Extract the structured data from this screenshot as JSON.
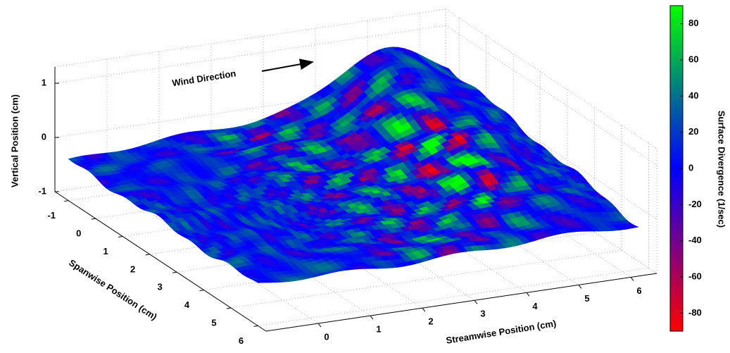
{
  "chart_data": {
    "type": "surface",
    "annotation": "Wind Direction",
    "xlabel": "Streamwise Position (cm)",
    "ylabel": "Spanwise Position (cm)",
    "zlabel": "Vertical Position (cm)",
    "colorbar_label": "Surface Divergence (1/sec)",
    "xlim": [
      -1,
      6.5
    ],
    "ylim": [
      -1.5,
      6.3
    ],
    "zlim": [
      -1,
      1.3
    ],
    "xticks": [
      0,
      1,
      2,
      3,
      4,
      5,
      6
    ],
    "yticks": [
      -1,
      0,
      1,
      2,
      3,
      4,
      5,
      6
    ],
    "zticks": [
      -1,
      0,
      1
    ],
    "clim": [
      -90,
      90
    ],
    "cticks": [
      -80,
      -60,
      -40,
      -20,
      0,
      20,
      40,
      60,
      80
    ],
    "colormap": [
      "#ff0000",
      "#0000ff",
      "#00ff00"
    ],
    "grid": true
  }
}
